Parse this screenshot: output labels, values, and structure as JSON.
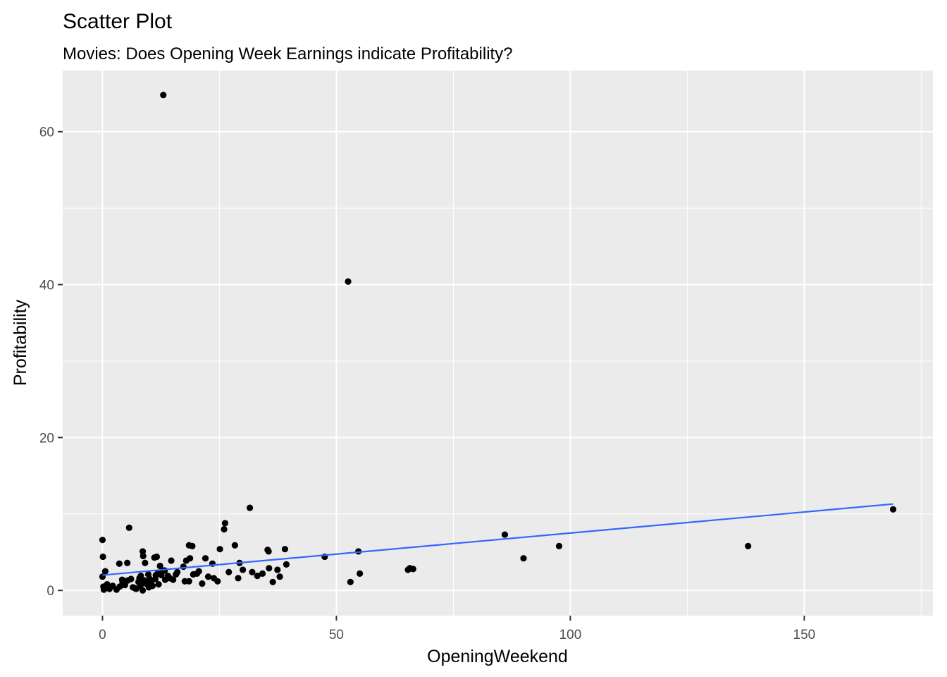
{
  "chart_data": {
    "type": "scatter",
    "title": "Scatter Plot",
    "subtitle": "Movies: Does Opening Week Earnings indicate Profitability?",
    "xlabel": "OpeningWeekend",
    "ylabel": "Profitability",
    "xlim": [
      -8.5,
      177.5
    ],
    "ylim": [
      -3.3,
      68.0
    ],
    "x_ticks": [
      0,
      50,
      100,
      150
    ],
    "x_minor_ticks": [
      25,
      75,
      125,
      175
    ],
    "y_ticks": [
      0,
      20,
      40,
      60
    ],
    "y_minor_ticks": [
      10,
      30,
      50
    ],
    "grid": true,
    "colors": {
      "panel_background": "#ebebeb",
      "grid": "#ffffff",
      "points": "#000000",
      "trend_line": "#3366ff",
      "tick_label": "#4d4d4d",
      "tick_mark": "#333333"
    },
    "series": [
      {
        "name": "movies",
        "points": [
          [
            13.0,
            64.8
          ],
          [
            52.5,
            40.4
          ],
          [
            31.5,
            10.8
          ],
          [
            26.2,
            8.8
          ],
          [
            26.0,
            8.0
          ],
          [
            5.7,
            8.2
          ],
          [
            0.0,
            6.6
          ],
          [
            18.5,
            5.9
          ],
          [
            19.2,
            5.8
          ],
          [
            28.3,
            5.9
          ],
          [
            25.1,
            5.4
          ],
          [
            35.3,
            5.3
          ],
          [
            35.5,
            5.1
          ],
          [
            39.0,
            5.4
          ],
          [
            8.6,
            5.1
          ],
          [
            8.7,
            4.5
          ],
          [
            11.1,
            4.3
          ],
          [
            11.6,
            4.4
          ],
          [
            0.1,
            4.4
          ],
          [
            17.9,
            3.9
          ],
          [
            18.7,
            4.2
          ],
          [
            22.0,
            4.2
          ],
          [
            14.7,
            3.9
          ],
          [
            47.5,
            4.4
          ],
          [
            3.6,
            3.5
          ],
          [
            5.3,
            3.6
          ],
          [
            9.1,
            3.6
          ],
          [
            12.3,
            3.2
          ],
          [
            17.3,
            3.1
          ],
          [
            20.6,
            2.5
          ],
          [
            23.5,
            3.5
          ],
          [
            29.3,
            3.6
          ],
          [
            30.0,
            2.7
          ],
          [
            32.0,
            2.4
          ],
          [
            35.6,
            2.9
          ],
          [
            37.4,
            2.7
          ],
          [
            39.3,
            3.4
          ],
          [
            0.6,
            2.5
          ],
          [
            4.2,
            1.4
          ],
          [
            6.1,
            1.5
          ],
          [
            8.2,
            1.9
          ],
          [
            9.8,
            2.1
          ],
          [
            11.9,
            2.3
          ],
          [
            13.3,
            2.6
          ],
          [
            14.4,
            1.6
          ],
          [
            16.0,
            2.4
          ],
          [
            17.6,
            1.2
          ],
          [
            18.5,
            1.2
          ],
          [
            19.4,
            2.1
          ],
          [
            20.2,
            2.2
          ],
          [
            21.3,
            0.9
          ],
          [
            22.6,
            1.8
          ],
          [
            23.8,
            1.6
          ],
          [
            24.6,
            1.2
          ],
          [
            27.0,
            2.4
          ],
          [
            29.0,
            1.6
          ],
          [
            33.1,
            1.9
          ],
          [
            34.2,
            2.2
          ],
          [
            36.4,
            1.1
          ],
          [
            37.9,
            1.8
          ],
          [
            0.0,
            1.8
          ],
          [
            0.2,
            0.5
          ],
          [
            0.3,
            0.1
          ],
          [
            0.6,
            0.3
          ],
          [
            1.0,
            0.8
          ],
          [
            1.5,
            0.2
          ],
          [
            2.2,
            0.6
          ],
          [
            3.0,
            0.1
          ],
          [
            3.7,
            0.5
          ],
          [
            4.3,
            1.0
          ],
          [
            4.8,
            0.7
          ],
          [
            5.4,
            1.3
          ],
          [
            6.5,
            0.4
          ],
          [
            7.2,
            0.2
          ],
          [
            7.7,
            1.1
          ],
          [
            8.1,
            0.6
          ],
          [
            8.6,
            0.0
          ],
          [
            9.3,
            0.9
          ],
          [
            9.9,
            0.4
          ],
          [
            10.4,
            1.1
          ],
          [
            10.7,
            0.6
          ],
          [
            11.3,
            1.5
          ],
          [
            12.0,
            0.8
          ],
          [
            12.6,
            2.0
          ],
          [
            13.4,
            1.4
          ],
          [
            14.0,
            1.9
          ],
          [
            15.1,
            1.4
          ],
          [
            15.7,
            2.1
          ],
          [
            10.1,
            1.5
          ],
          [
            9.0,
            1.3
          ],
          [
            7.9,
            1.6
          ],
          [
            6.9,
            0.3
          ],
          [
            12.9,
            2.6
          ],
          [
            11.4,
            2.0
          ],
          [
            8.4,
            0.9
          ],
          [
            65.3,
            2.7
          ],
          [
            65.7,
            2.9
          ],
          [
            66.4,
            2.8
          ],
          [
            54.7,
            5.1
          ],
          [
            55.0,
            2.2
          ],
          [
            53.0,
            1.1
          ],
          [
            86.0,
            7.3
          ],
          [
            90.0,
            4.2
          ],
          [
            97.6,
            5.8
          ],
          [
            138.0,
            5.8
          ],
          [
            169.0,
            10.6
          ]
        ]
      }
    ],
    "trend_line": {
      "method": "lm",
      "x": [
        0,
        169.0
      ],
      "y": [
        2.0,
        11.3
      ]
    }
  }
}
